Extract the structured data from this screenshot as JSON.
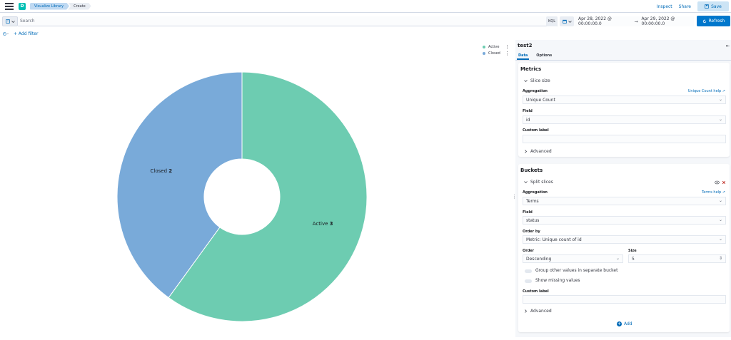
{
  "header": {
    "space_initial": "D",
    "breadcrumbs": [
      "Visualize Library",
      "Create"
    ],
    "links": [
      "Inspect",
      "Share"
    ],
    "save_label": "Save"
  },
  "query": {
    "search_placeholder": "Search",
    "kql_label": "KQL",
    "start_date": "Apr 28, 2022 @ 00:00:00.0",
    "arrow": "→",
    "end_date": "Apr 29, 2022 @ 00:00:00.0",
    "refresh_label": "Refresh",
    "add_filter_label": "+ Add filter"
  },
  "chart_data": {
    "type": "pie",
    "donut": true,
    "categories": [
      "Active",
      "Closed"
    ],
    "values": [
      3,
      2
    ],
    "colors": [
      "#6dccb1",
      "#79aad9"
    ],
    "legend": [
      "Active",
      "Closed"
    ],
    "legend_placement": "top-right"
  },
  "editor": {
    "title": "test2",
    "tabs": [
      "Data",
      "Options"
    ],
    "metrics": {
      "heading": "Metrics",
      "slice_label": "Slice size",
      "aggregation_label": "Aggregation",
      "aggregation_help": "Unique Count help",
      "aggregation_value": "Unique Count",
      "field_label": "Field",
      "field_value": "id",
      "custom_label": "Custom label",
      "advanced": "Advanced"
    },
    "buckets": {
      "heading": "Buckets",
      "split_label": "Split slices",
      "aggregation_label": "Aggregation",
      "aggregation_help": "Terms help",
      "aggregation_value": "Terms",
      "field_label": "Field",
      "field_value": "status",
      "order_by_label": "Order by",
      "order_by_value": "Metric: Unique count of id",
      "order_label": "Order",
      "order_value": "Descending",
      "size_label": "Size",
      "size_value": "5",
      "group_other": "Group other values in separate bucket",
      "show_missing": "Show missing values",
      "custom_label": "Custom label",
      "advanced": "Advanced",
      "add_label": "Add"
    }
  },
  "colors": {
    "accent": "#0077cc",
    "link": "#006bb8"
  }
}
